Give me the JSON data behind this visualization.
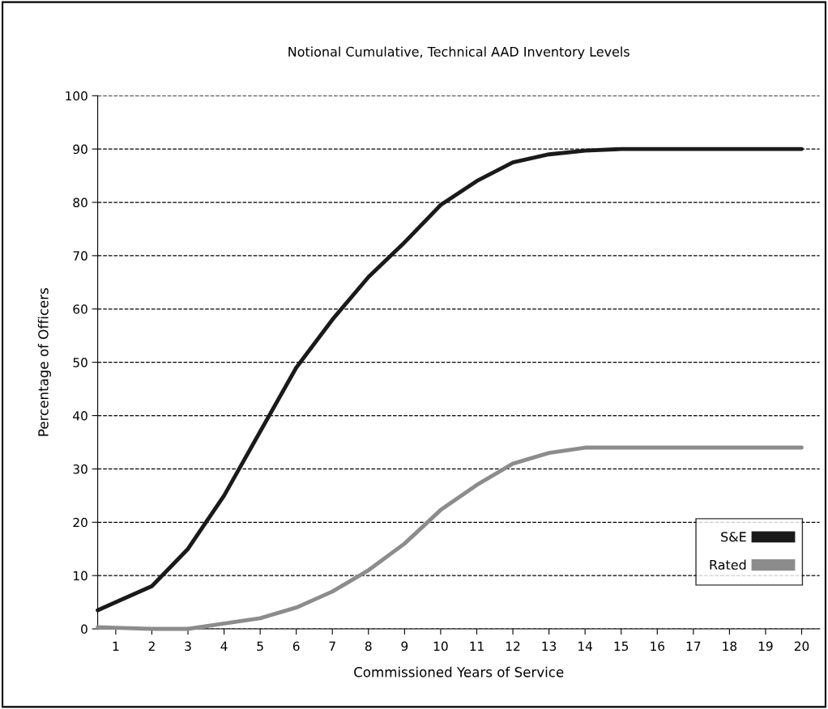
{
  "chart_data": {
    "type": "line",
    "title": "Notional Cumulative, Technical AAD Inventory Levels",
    "xlabel": "Commissioned Years of Service",
    "ylabel": "Percentage of Officers",
    "x": [
      0.5,
      1,
      2,
      3,
      4,
      5,
      6,
      7,
      8,
      9,
      10,
      11,
      12,
      13,
      14,
      15,
      16,
      17,
      18,
      19,
      20
    ],
    "series": [
      {
        "name": "S&E",
        "color": "#1a1a1a",
        "values": [
          3.5,
          5,
          8,
          15,
          25,
          37,
          49,
          58,
          66,
          72.5,
          79.5,
          84,
          87.5,
          89,
          89.7,
          90,
          90,
          90,
          90,
          90,
          90
        ]
      },
      {
        "name": "Rated",
        "color": "#8c8c8c",
        "values": [
          0.3,
          0.2,
          0,
          0,
          1,
          2,
          4,
          7,
          11,
          16,
          22.3,
          27,
          31,
          33,
          34,
          34,
          34,
          34,
          34,
          34,
          34
        ]
      }
    ],
    "xlim": [
      0.5,
      20.5
    ],
    "xticks": [
      1,
      2,
      3,
      4,
      5,
      6,
      7,
      8,
      9,
      10,
      11,
      12,
      13,
      14,
      15,
      16,
      17,
      18,
      19,
      20
    ],
    "ylim": [
      0,
      100
    ],
    "yticks": [
      0,
      10,
      20,
      30,
      40,
      50,
      60,
      70,
      80,
      90,
      100
    ],
    "grid": "y",
    "line_style": "solid",
    "marker": "none",
    "legend": "bottom right"
  }
}
